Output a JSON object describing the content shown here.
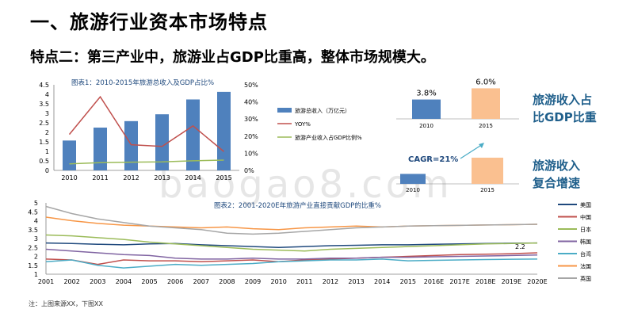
{
  "title": "一、旅游行业资本市场特点",
  "subtitle": "特点二：第三产业中，旅游业占GDP比重高，整体市场规模大。",
  "side_labels": {
    "share_line1": "旅游收入占",
    "share_line2": "比GDP比重",
    "growth_line1": "旅游收入",
    "growth_line2": "复合增速"
  },
  "cagr_label": "CAGR=21%",
  "footnote": "注：上图来源XX，下图XX",
  "watermark": "baogao8.com",
  "colors": {
    "bar_blue": "#4f81bd",
    "line_red": "#c0504d",
    "line_green": "#9bbb59",
    "bar_orange": "#fac090",
    "accent_text": "#1f5f8b"
  },
  "chart_data": [
    {
      "type": "bar",
      "title": "图表1：2010-2015年旅游总收入及GDP占比%",
      "categories": [
        "2010",
        "2011",
        "2012",
        "2013",
        "2014",
        "2015"
      ],
      "y_left_ticks": [
        "0",
        "0.5",
        "1",
        "1.5",
        "2",
        "2.5",
        "3",
        "3.5",
        "4",
        "4.5"
      ],
      "y_right_ticks": [
        "0%",
        "10%",
        "20%",
        "30%",
        "40%",
        "50%"
      ],
      "ylim_left": [
        0,
        4.5
      ],
      "ylim_right": [
        0,
        50
      ],
      "series": [
        {
          "name": "旅游总收入（万亿元）",
          "type": "bar",
          "axis": "left",
          "values": [
            1.57,
            2.25,
            2.59,
            2.95,
            3.73,
            4.13
          ]
        },
        {
          "name": "YOY%",
          "type": "line",
          "axis": "right",
          "values": [
            21,
            43,
            15,
            14,
            26,
            11
          ]
        },
        {
          "name": "旅游产业收入占GDP比例%",
          "type": "line",
          "axis": "right",
          "values": [
            3.8,
            4.5,
            4.8,
            5.0,
            5.6,
            6.0
          ]
        }
      ],
      "legend": "right"
    },
    {
      "type": "bar",
      "title": "",
      "categories": [
        "2010",
        "2015"
      ],
      "values": [
        3.8,
        6.0
      ],
      "data_labels": [
        "3.8%",
        "6.0%"
      ],
      "ylim": [
        0,
        7
      ]
    },
    {
      "type": "bar",
      "title": "",
      "categories": [
        "2010",
        "2015"
      ],
      "values": [
        1.57,
        4.13
      ],
      "ylim": [
        0,
        5
      ]
    },
    {
      "type": "line",
      "title": "图表2：2001-2020E年旅游产业直接贡献GDP的比重%",
      "categories": [
        "2001",
        "2002",
        "2003",
        "2004",
        "2005",
        "2006",
        "2007",
        "2008",
        "2009",
        "2010",
        "2011",
        "2012",
        "2013",
        "2014",
        "2015",
        "2016E",
        "2017E",
        "2018E",
        "2019E",
        "2020E"
      ],
      "y_ticks": [
        "1",
        "1.5",
        "2",
        "2.5",
        "3",
        "3.5",
        "4",
        "4.5",
        "5"
      ],
      "ylim": [
        1,
        5
      ],
      "series": [
        {
          "name": "美国",
          "color": "#1f497d",
          "values": [
            2.75,
            2.72,
            2.68,
            2.65,
            2.7,
            2.72,
            2.65,
            2.6,
            2.55,
            2.5,
            2.55,
            2.6,
            2.62,
            2.65,
            2.65,
            2.68,
            2.7,
            2.72,
            2.74,
            2.75
          ]
        },
        {
          "name": "中国",
          "color": "#c0504d",
          "values": [
            1.85,
            1.8,
            1.55,
            1.8,
            1.75,
            1.75,
            1.7,
            1.75,
            1.8,
            1.7,
            1.8,
            1.85,
            1.9,
            1.95,
            2.0,
            2.05,
            2.1,
            2.12,
            2.15,
            2.2
          ]
        },
        {
          "name": "日本",
          "color": "#9bbb59",
          "values": [
            3.2,
            3.15,
            3.05,
            2.95,
            2.8,
            2.7,
            2.6,
            2.5,
            2.4,
            2.35,
            2.3,
            2.4,
            2.45,
            2.5,
            2.55,
            2.6,
            2.65,
            2.7,
            2.72,
            2.75
          ]
        },
        {
          "name": "韩国",
          "color": "#8064a2",
          "values": [
            2.4,
            2.3,
            2.2,
            2.1,
            2.05,
            1.9,
            1.85,
            1.85,
            1.9,
            1.85,
            1.85,
            1.9,
            1.9,
            1.95,
            1.95,
            1.98,
            2.0,
            2.02,
            2.05,
            2.08
          ]
        },
        {
          "name": "台湾",
          "color": "#4bacc6",
          "values": [
            1.7,
            1.8,
            1.5,
            1.35,
            1.45,
            1.55,
            1.5,
            1.55,
            1.6,
            1.7,
            1.75,
            1.8,
            1.8,
            1.85,
            1.75,
            1.78,
            1.8,
            1.82,
            1.84,
            1.85
          ]
        },
        {
          "name": "法国",
          "color": "#f79646",
          "values": [
            4.2,
            4.0,
            3.85,
            3.75,
            3.7,
            3.65,
            3.6,
            3.65,
            3.55,
            3.5,
            3.6,
            3.65,
            3.7,
            3.65,
            3.7,
            3.72,
            3.74,
            3.76,
            3.78,
            3.8
          ]
        },
        {
          "name": "英国",
          "color": "#a6a6a6",
          "values": [
            4.8,
            4.4,
            4.1,
            3.9,
            3.7,
            3.6,
            3.5,
            3.3,
            3.25,
            3.3,
            3.4,
            3.5,
            3.6,
            3.65,
            3.7,
            3.72,
            3.74,
            3.76,
            3.78,
            3.8
          ]
        }
      ],
      "data_labels": [
        "2.2"
      ],
      "legend": "right"
    }
  ]
}
